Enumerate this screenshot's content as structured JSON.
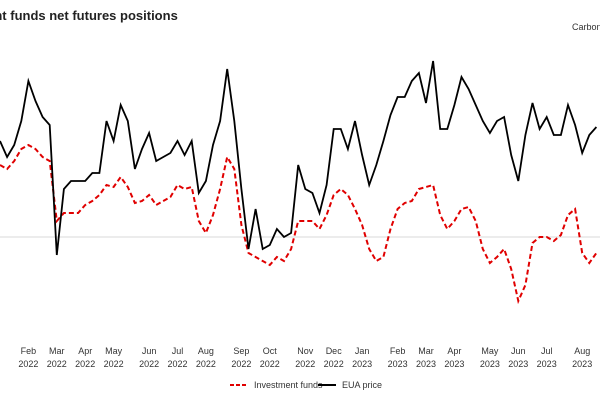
{
  "chart_data": {
    "type": "line",
    "title": "Investment funds net futures positions",
    "subtitle": "Carbon",
    "categories": [
      null,
      null,
      null,
      null,
      "Feb 2022",
      null,
      null,
      null,
      "Mar 2022",
      null,
      null,
      null,
      "Apr 2022",
      null,
      null,
      null,
      "May 2022",
      null,
      null,
      null,
      null,
      "Jun 2022",
      null,
      null,
      null,
      "Jul 2022",
      null,
      null,
      null,
      "Aug 2022",
      null,
      null,
      null,
      null,
      "Sep 2022",
      null,
      null,
      null,
      "Oct 2022",
      null,
      null,
      null,
      null,
      "Nov 2022",
      null,
      null,
      null,
      "Dec 2022",
      null,
      null,
      null,
      "Jan 2023",
      null,
      null,
      null,
      null,
      "Feb 2023",
      null,
      null,
      null,
      "Mar 2023",
      null,
      null,
      null,
      "Apr 2023",
      null,
      null,
      null,
      null,
      "May 2023",
      null,
      null,
      null,
      "Jun 2023",
      null,
      null,
      null,
      "Jul 2023",
      null,
      null,
      null,
      null,
      "Aug 2023",
      null,
      null
    ],
    "series": [
      {
        "name": "Investment funds",
        "color": "#e00000",
        "dash": true,
        "values": [
          36,
          34,
          38,
          44,
          46,
          44,
          40,
          38,
          8,
          12,
          12,
          12,
          16,
          18,
          21,
          26,
          25,
          30,
          25,
          17,
          18,
          21,
          16,
          18,
          20,
          26,
          24,
          25,
          8,
          2,
          11,
          24,
          40,
          34,
          6,
          -8,
          -10,
          -12,
          -14,
          -10,
          -12,
          -6,
          8,
          8,
          8,
          4,
          11,
          21,
          24,
          21,
          14,
          6,
          -6,
          -12,
          -10,
          4,
          14,
          17,
          18,
          24,
          25,
          26,
          11,
          4,
          8,
          14,
          15,
          8,
          -6,
          -13,
          -10,
          -6,
          -16,
          -32,
          -24,
          -3,
          0,
          0,
          -2,
          1,
          11,
          14,
          -8,
          -13,
          -8
        ]
      },
      {
        "name": "EUA price",
        "color": "#000000",
        "dash": false,
        "values": [
          48,
          40,
          46,
          58,
          78,
          68,
          60,
          56,
          -9,
          24,
          28,
          28,
          28,
          32,
          32,
          58,
          48,
          66,
          58,
          34,
          44,
          52,
          38,
          40,
          42,
          48,
          41,
          48,
          22,
          28,
          46,
          58,
          84,
          58,
          24,
          -6,
          14,
          -6,
          -4,
          4,
          0,
          2,
          36,
          24,
          22,
          12,
          26,
          54,
          54,
          44,
          58,
          41,
          26,
          36,
          48,
          61,
          70,
          70,
          78,
          82,
          67,
          88,
          54,
          54,
          66,
          80,
          74,
          66,
          58,
          52,
          58,
          60,
          41,
          28,
          51,
          67,
          54,
          60,
          51,
          51,
          66,
          56,
          42,
          51,
          55
        ]
      }
    ],
    "ylim": [
      -50,
      100
    ],
    "legend": "bottom"
  }
}
